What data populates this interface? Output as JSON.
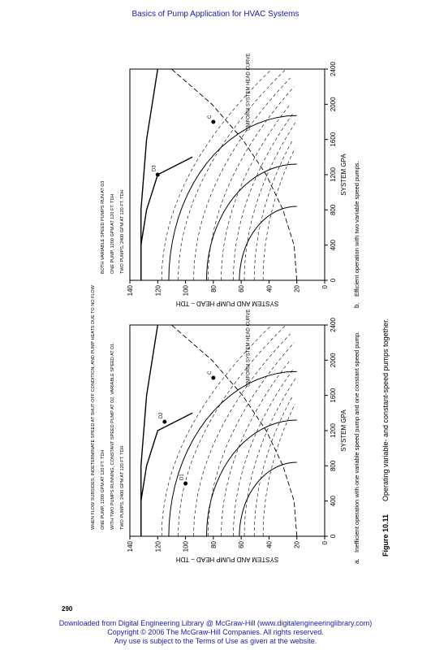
{
  "header": {
    "running_title": "Basics of Pump Application for HVAC Systems"
  },
  "page_number": "290",
  "footer": {
    "line1": "Downloaded from Digital Engineering Library @ McGraw-Hill (www.digitalengineeringlibrary.com)",
    "line2": "Copyright © 2006 The McGraw-Hill Companies. All rights reserved.",
    "line3": "Any use is subject to the Terms of Use as given at the website."
  },
  "figure": {
    "number": "Figure 10.11",
    "caption": "Operating variable- and constant-speed pumps together."
  },
  "charts": {
    "x_label": "SYSTEM GPA",
    "y_label": "SYSTEM AND PUMP HEAD – TDH",
    "x_ticks": [
      "0",
      "400",
      "800",
      "1200",
      "1600",
      "2000",
      "2400"
    ],
    "y_ticks": [
      "0",
      "20",
      "40",
      "60",
      "80",
      "100",
      "120",
      "140"
    ],
    "system_curve_label": "UNIFORM SYSTEM HEAD CURVE",
    "a": {
      "letter": "a.",
      "caption": "Inefficient operation with one variable speed pump and one constant speed pump.",
      "notes": {
        "two_pumps": "TWO PUMPS, 2400 GPM AT 120 FT. TDH",
        "running": "WITH TWO PUMPS RUNNING, CONSTANT SPEED PUMP AT D2, VARIABLE SPEED AT D1.",
        "one_pump": "ONE PUMP, 1200 GPM AT 120 FT. TDH",
        "subsides": "WHEN FLOW SUBSIDES, INDETERMINATE SPEED AT SHUT-OFF CONDITION, AND PUMP HEATS DUE TO NO FLOW"
      },
      "points": [
        "D1",
        "D2",
        "C"
      ]
    },
    "b": {
      "letter": "b.",
      "caption": "Efficient operation with two variable speed pumps.",
      "notes": {
        "two_pumps": "TWO PUMPS, 2400 GPM AT 120 FT. TDH",
        "one_pump": "ONE PUMP, 1200 GPM AT 120 FT. TDH",
        "both_pumps": "BOTH VARIABLE SPEED PUMPS RUN AT D3"
      },
      "points": [
        "D3",
        "C"
      ]
    }
  },
  "chart_data": [
    {
      "type": "line",
      "xlabel": "SYSTEM GPA",
      "ylabel": "SYSTEM AND PUMP HEAD – TDH",
      "xlim": [
        0,
        2400
      ],
      "ylim": [
        0,
        140
      ],
      "series": [
        {
          "name": "UNIFORM SYSTEM HEAD CURVE",
          "x": [
            0,
            400,
            800,
            1200,
            1600,
            2000,
            2400
          ],
          "y": [
            20,
            22,
            30,
            42,
            59,
            81,
            110
          ]
        },
        {
          "name": "ONE PUMP, 1200 GPM AT 120 FT. TDH",
          "x": [
            0,
            400,
            800,
            1200,
            1400
          ],
          "y": [
            132,
            132,
            128,
            120,
            95
          ]
        },
        {
          "name": "TWO PUMPS, 2400 GPM AT 120 FT. TDH",
          "x": [
            0,
            800,
            1600,
            2400
          ],
          "y": [
            132,
            132,
            128,
            120
          ]
        }
      ]
    },
    {
      "type": "line",
      "xlabel": "SYSTEM GPA",
      "ylabel": "SYSTEM AND PUMP HEAD – TDH",
      "xlim": [
        0,
        2400
      ],
      "ylim": [
        0,
        140
      ],
      "series": [
        {
          "name": "UNIFORM SYSTEM HEAD CURVE",
          "x": [
            0,
            400,
            800,
            1200,
            1600,
            2000,
            2400
          ],
          "y": [
            20,
            22,
            30,
            42,
            59,
            81,
            110
          ]
        },
        {
          "name": "ONE PUMP, 1200 GPM AT 120 FT. TDH",
          "x": [
            0,
            400,
            800,
            1200,
            1400
          ],
          "y": [
            132,
            132,
            128,
            120,
            95
          ]
        },
        {
          "name": "TWO PUMPS, 2400 GPM AT 120 FT. TDH",
          "x": [
            0,
            800,
            1600,
            2400
          ],
          "y": [
            132,
            132,
            128,
            120
          ]
        }
      ]
    }
  ]
}
